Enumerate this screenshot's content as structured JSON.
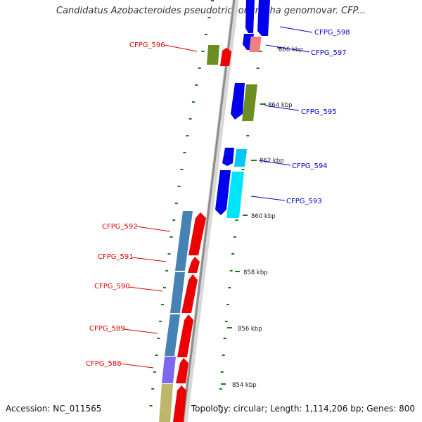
{
  "title": "Candidatus Azobacteroides pseudotrichonympha genomovar. CFP...",
  "footer": {
    "accession": "Accession: NC_011565",
    "summary": "Topology: circular; Length: 1,114,206 bp; Genes: 800"
  },
  "colors": {
    "backbone": "#999999",
    "forward_label": "#0000cc",
    "reverse_label": "#dd0000",
    "tick": "#1a7a1a"
  },
  "scale_labels": [
    "866 kbp",
    "864 kbp",
    "862 kbp",
    "860 kbp",
    "858 kbp",
    "856 kbp",
    "854 kbp"
  ],
  "gene_labels": {
    "forward": [
      "CFPG_598",
      "CFPG_597",
      "CFPG_595",
      "CFPG_594",
      "CFPG_593"
    ],
    "reverse": [
      "CFPG_596",
      "CFPG_592",
      "CFPG_591",
      "CFPG_590",
      "CFPG_589",
      "CFPG_588"
    ]
  }
}
